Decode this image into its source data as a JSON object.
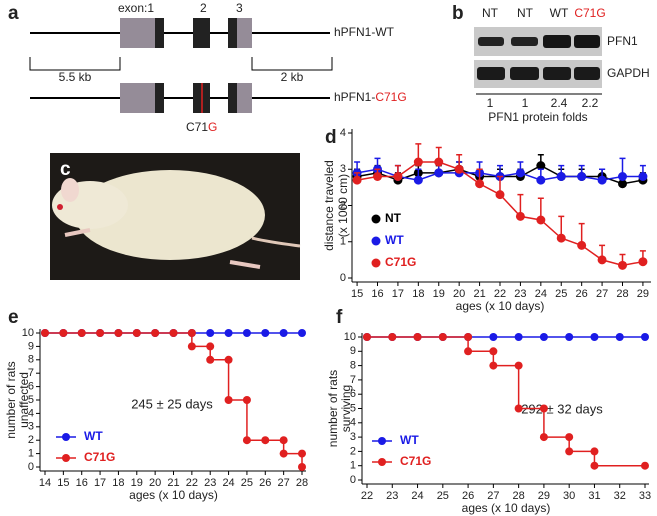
{
  "panel_labels": [
    "a",
    "b",
    "c",
    "d",
    "e",
    "f"
  ],
  "gene_diagram": {
    "exon_labels": [
      "exon:1",
      "2",
      "3"
    ],
    "left_length": "5.5 kb",
    "right_length": "2 kb",
    "constructs": [
      {
        "prefix": "hPFN1-",
        "suffix": "WT"
      },
      {
        "prefix": "hPFN1-",
        "suffix": "C71G"
      }
    ],
    "mutation": {
      "residue": "C71",
      "base": "G"
    }
  },
  "western_blot": {
    "lanes": [
      "NT",
      "NT",
      "WT",
      "C71G"
    ],
    "proteins": [
      "PFN1",
      "GAPDH"
    ],
    "folds": [
      1,
      1,
      2.4,
      2.2
    ],
    "folds_label": "PFN1 protein folds"
  },
  "chart_data": [
    {
      "type": "line",
      "xlabel": "ages (x 10 days)",
      "ylabel": [
        "distance  traveled",
        "(x 1000 cm)"
      ],
      "x": [
        15,
        16,
        17,
        18,
        19,
        20,
        21,
        22,
        23,
        24,
        25,
        26,
        27,
        28,
        29
      ],
      "xlim": [
        14.8,
        29.2
      ],
      "xticks": [
        15,
        16,
        17,
        18,
        19,
        20,
        21,
        22,
        23,
        24,
        25,
        26,
        27,
        28,
        29
      ],
      "ylim": [
        0,
        4
      ],
      "yticks": [
        0,
        1,
        2,
        3,
        4
      ],
      "series": [
        {
          "name": "NT",
          "color": "#000000",
          "values": [
            2.8,
            2.9,
            2.7,
            2.9,
            2.9,
            3.0,
            2.8,
            2.8,
            2.8,
            3.1,
            2.8,
            2.8,
            2.8,
            2.6,
            2.7
          ],
          "errors": [
            0.2,
            0.2,
            0.2,
            0.2,
            0.2,
            0.2,
            0.2,
            0.2,
            0.2,
            0.3,
            0.2,
            0.2,
            0.2,
            0.2,
            0.2
          ]
        },
        {
          "name": "WT",
          "color": "#1a1ae6",
          "values": [
            2.9,
            3.0,
            2.8,
            2.7,
            2.9,
            2.9,
            2.9,
            2.8,
            2.9,
            2.7,
            2.8,
            2.8,
            2.7,
            2.8,
            2.8
          ],
          "errors": [
            0.3,
            0.3,
            0.3,
            0.3,
            0.3,
            0.3,
            0.3,
            0.3,
            0.3,
            0.3,
            0.3,
            0.3,
            0.3,
            0.5,
            0.3
          ]
        },
        {
          "name": "C71G",
          "color": "#e02020",
          "values": [
            2.7,
            2.8,
            2.8,
            3.2,
            3.2,
            3.0,
            2.6,
            2.3,
            1.7,
            1.6,
            1.1,
            0.9,
            0.5,
            0.35,
            0.45
          ],
          "errors": [
            0.2,
            0.2,
            0.3,
            0.5,
            0.4,
            0.4,
            0.4,
            0.5,
            0.6,
            0.6,
            0.6,
            0.6,
            0.4,
            0.3,
            0.3
          ]
        }
      ]
    },
    {
      "type": "step",
      "xlabel": "ages (x 10 days)",
      "ylabel": [
        "number of rats",
        "unaffected"
      ],
      "annotation": "245 ± 25 days",
      "xlim": [
        14,
        28
      ],
      "xticks": [
        14,
        15,
        16,
        17,
        18,
        19,
        20,
        21,
        22,
        23,
        24,
        25,
        26,
        27,
        28
      ],
      "ylim": [
        0,
        10
      ],
      "yticks": [
        0,
        1,
        2,
        3,
        4,
        5,
        6,
        7,
        8,
        9,
        10
      ],
      "series": [
        {
          "name": "WT",
          "color": "#1a1ae6",
          "x": [
            14,
            15,
            16,
            17,
            18,
            19,
            20,
            21,
            22,
            23,
            24,
            25,
            26,
            27,
            28
          ],
          "values": [
            10,
            10,
            10,
            10,
            10,
            10,
            10,
            10,
            10,
            10,
            10,
            10,
            10,
            10,
            10
          ]
        },
        {
          "name": "C71G",
          "color": "#e02020",
          "x": [
            14,
            15,
            16,
            17,
            18,
            19,
            20,
            21,
            22,
            23,
            24,
            25,
            26,
            27,
            28
          ],
          "values": [
            10,
            10,
            10,
            10,
            10,
            10,
            10,
            10,
            9,
            8,
            5,
            2,
            2,
            1,
            0
          ]
        }
      ]
    },
    {
      "type": "step",
      "xlabel": "ages (x 10 days)",
      "ylabel": [
        "number of rats",
        "surviving"
      ],
      "annotation": "292 ± 32 days",
      "xlim": [
        22,
        33
      ],
      "xticks": [
        22,
        23,
        24,
        25,
        26,
        27,
        28,
        29,
        30,
        31,
        32,
        33
      ],
      "ylim": [
        0,
        10
      ],
      "yticks": [
        0,
        1,
        2,
        3,
        4,
        5,
        6,
        7,
        8,
        9,
        10
      ],
      "series": [
        {
          "name": "WT",
          "color": "#1a1ae6",
          "x": [
            22,
            23,
            24,
            25,
            26,
            27,
            28,
            29,
            30,
            31,
            32,
            33
          ],
          "values": [
            10,
            10,
            10,
            10,
            10,
            10,
            10,
            10,
            10,
            10,
            10,
            10
          ]
        },
        {
          "name": "C71G",
          "color": "#e02020",
          "x": [
            22,
            23,
            24,
            25,
            26,
            27,
            28,
            29,
            30,
            31,
            33
          ],
          "values": [
            10,
            10,
            10,
            10,
            9,
            8,
            5,
            3,
            2,
            1,
            1
          ]
        }
      ]
    }
  ]
}
